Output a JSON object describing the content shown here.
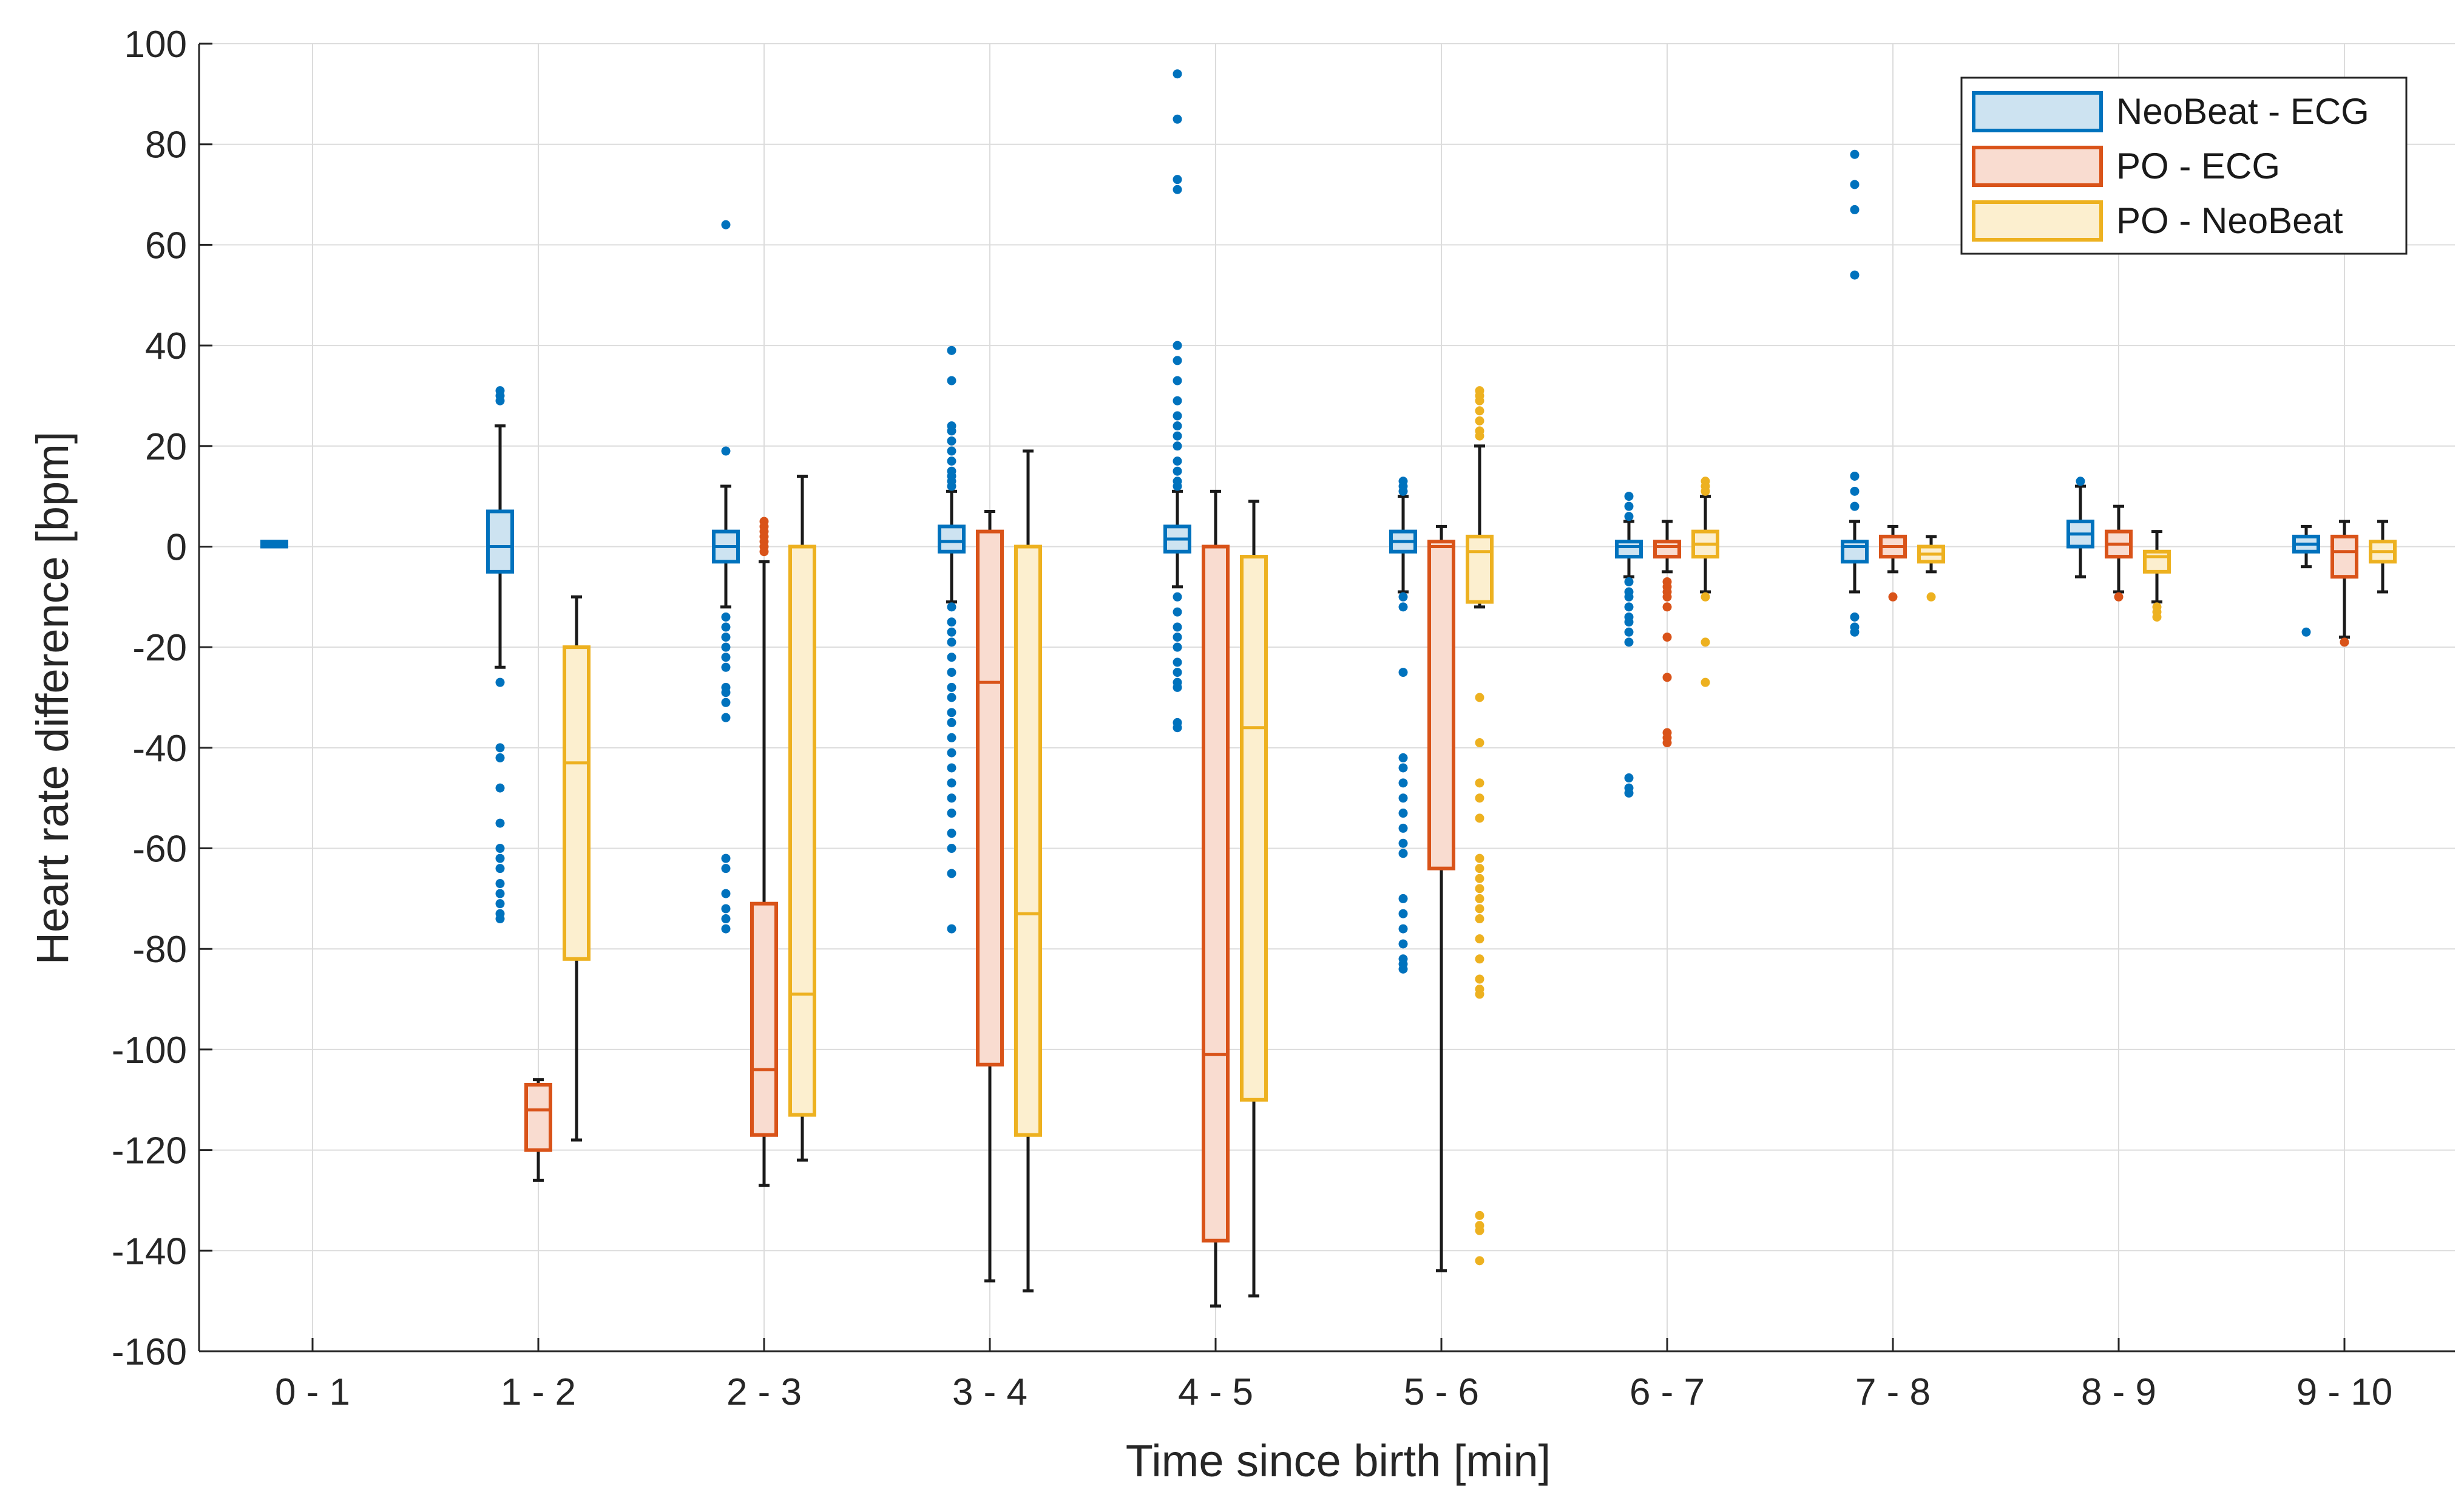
{
  "chart_data": {
    "type": "box",
    "xlabel": "Time since birth [min]",
    "ylabel": "Heart rate difference [bpm]",
    "ylim": [
      -160,
      100
    ],
    "yticks": [
      100,
      80,
      60,
      40,
      20,
      0,
      -20,
      -40,
      -60,
      -80,
      -100,
      -120,
      -140,
      -160
    ],
    "ytick_labels": [
      "100",
      "80",
      "60",
      "40",
      "20",
      "0",
      "-20",
      "-40",
      "-60",
      "-80",
      "-100",
      "-120",
      "-140",
      "-160"
    ],
    "grid": true,
    "legend_position": "top-right",
    "categories": [
      "0 - 1",
      "1 - 2",
      "2 - 3",
      "3 - 4",
      "4 - 5",
      "5 - 6",
      "6 - 7",
      "7 - 8",
      "8 - 9",
      "9 - 10"
    ],
    "colors": {
      "NeoBeat - ECG": {
        "edge": "#0072BD",
        "fill": "#CDE3F1"
      },
      "PO - ECG": {
        "edge": "#D95319",
        "fill": "#F9DCD0"
      },
      "PO - NeoBeat": {
        "edge": "#EDB120",
        "fill": "#FCEFCF"
      }
    },
    "series": [
      {
        "name": "NeoBeat - ECG",
        "boxes": [
          {
            "q1": 0,
            "median": 0.5,
            "q3": 1,
            "whislo": 0,
            "whishi": 1,
            "outliers": []
          },
          {
            "q1": -5,
            "median": 0,
            "q3": 7,
            "whislo": -24,
            "whishi": 24,
            "outliers": [
              31,
              30,
              29,
              -27,
              -40,
              -42,
              -48,
              -55,
              -60,
              -62,
              -64,
              -67,
              -69,
              -71,
              -73,
              -74
            ]
          },
          {
            "q1": -3,
            "median": 0,
            "q3": 3,
            "whislo": -12,
            "whishi": 12,
            "outliers": [
              64,
              19,
              -14,
              -16,
              -18,
              -20,
              -22,
              -24,
              -28,
              -29,
              -31,
              -34,
              -62,
              -64,
              -69,
              -72,
              -74,
              -76
            ]
          },
          {
            "q1": -1,
            "median": 1,
            "q3": 4,
            "whislo": -11,
            "whishi": 11,
            "outliers": [
              39,
              33,
              24,
              23,
              21,
              19,
              17,
              15,
              14,
              13,
              12,
              -12,
              -15,
              -17,
              -19,
              -22,
              -25,
              -28,
              -30,
              -33,
              -35,
              -38,
              -41,
              -44,
              -47,
              -50,
              -53,
              -57,
              -60,
              -65,
              -76
            ]
          },
          {
            "q1": -1,
            "median": 1.5,
            "q3": 4,
            "whislo": -8,
            "whishi": 11,
            "outliers": [
              94,
              85,
              73,
              71,
              40,
              37,
              33,
              29,
              26,
              24,
              22,
              20,
              17,
              15,
              13,
              12,
              -10,
              -13,
              -16,
              -18,
              -20,
              -23,
              -25,
              -27,
              -28,
              -35,
              -36
            ]
          },
          {
            "q1": -1,
            "median": 1,
            "q3": 3,
            "whislo": -9,
            "whishi": 10,
            "outliers": [
              13,
              12,
              11,
              -10,
              -12,
              -25,
              -42,
              -44,
              -47,
              -50,
              -53,
              -56,
              -59,
              -61,
              -70,
              -73,
              -76,
              -79,
              -82,
              -83,
              -84
            ]
          },
          {
            "q1": -2,
            "median": 0,
            "q3": 1,
            "whislo": -6,
            "whishi": 5,
            "outliers": [
              10,
              8,
              6,
              -7,
              -9,
              -10,
              -12,
              -14,
              -15,
              -17,
              -19,
              -46,
              -48,
              -49
            ]
          },
          {
            "q1": -3,
            "median": 0,
            "q3": 1,
            "whislo": -9,
            "whishi": 5,
            "outliers": [
              78,
              72,
              67,
              54,
              14,
              11,
              8,
              -14,
              -16,
              -17
            ]
          },
          {
            "q1": 0,
            "median": 2.5,
            "q3": 5,
            "whislo": -6,
            "whishi": 12,
            "outliers": [
              13
            ]
          },
          {
            "q1": -1,
            "median": 0.5,
            "q3": 2,
            "whislo": -4,
            "whishi": 4,
            "outliers": [
              -17
            ]
          }
        ]
      },
      {
        "name": "PO - ECG",
        "boxes": [
          null,
          {
            "q1": -120,
            "median": -112,
            "q3": -107,
            "whislo": -126,
            "whishi": -106,
            "outliers": []
          },
          {
            "q1": -117,
            "median": -104,
            "q3": -71,
            "whislo": -127,
            "whishi": -3,
            "outliers": [
              5,
              4,
              3,
              2,
              1,
              0,
              -1
            ]
          },
          {
            "q1": -103,
            "median": -27,
            "q3": 3,
            "whislo": -146,
            "whishi": 7,
            "outliers": []
          },
          {
            "q1": -138,
            "median": -101,
            "q3": 0,
            "whislo": -151,
            "whishi": 11,
            "outliers": []
          },
          {
            "q1": -64,
            "median": 0,
            "q3": 1,
            "whislo": -144,
            "whishi": 4,
            "outliers": []
          },
          {
            "q1": -2,
            "median": 0,
            "q3": 1,
            "whislo": -5,
            "whishi": 5,
            "outliers": [
              -7,
              -8,
              -9,
              -10,
              -12,
              -18,
              -26,
              -37,
              -38,
              -39
            ]
          },
          {
            "q1": -2,
            "median": 0,
            "q3": 2,
            "whislo": -5,
            "whishi": 4,
            "outliers": [
              -10
            ]
          },
          {
            "q1": -2,
            "median": 0.5,
            "q3": 3,
            "whislo": -9,
            "whishi": 8,
            "outliers": [
              -10
            ]
          },
          {
            "q1": -6,
            "median": -1,
            "q3": 2,
            "whislo": -18,
            "whishi": 5,
            "outliers": [
              -19
            ]
          }
        ]
      },
      {
        "name": "PO - NeoBeat",
        "boxes": [
          null,
          {
            "q1": -82,
            "median": -43,
            "q3": -20,
            "whislo": -118,
            "whishi": -10,
            "outliers": []
          },
          {
            "q1": -113,
            "median": -89,
            "q3": 0,
            "whislo": -122,
            "whishi": 14,
            "outliers": []
          },
          {
            "q1": -117,
            "median": -73,
            "q3": 0,
            "whislo": -148,
            "whishi": 19,
            "outliers": []
          },
          {
            "q1": -110,
            "median": -36,
            "q3": -2,
            "whislo": -149,
            "whishi": 9,
            "outliers": []
          },
          {
            "q1": -11,
            "median": -1,
            "q3": 2,
            "whislo": -12,
            "whishi": 20,
            "outliers": [
              31,
              30,
              29,
              27,
              25,
              23,
              22,
              -30,
              -39,
              -47,
              -50,
              -54,
              -62,
              -64,
              -66,
              -68,
              -70,
              -72,
              -74,
              -78,
              -82,
              -86,
              -88,
              -89,
              -133,
              -135,
              -136,
              -142
            ]
          },
          {
            "q1": -2,
            "median": 0.5,
            "q3": 3,
            "whislo": -9,
            "whishi": 10,
            "outliers": [
              13,
              12,
              11,
              -10,
              -19,
              -27
            ]
          },
          {
            "q1": -3,
            "median": -1.5,
            "q3": 0,
            "whislo": -5,
            "whishi": 2,
            "outliers": [
              -10
            ]
          },
          {
            "q1": -5,
            "median": -2,
            "q3": -1,
            "whislo": -11,
            "whishi": 3,
            "outliers": [
              -12,
              -13,
              -14
            ]
          },
          {
            "q1": -3,
            "median": -1,
            "q3": 1,
            "whislo": -9,
            "whishi": 5,
            "outliers": []
          }
        ]
      }
    ]
  }
}
